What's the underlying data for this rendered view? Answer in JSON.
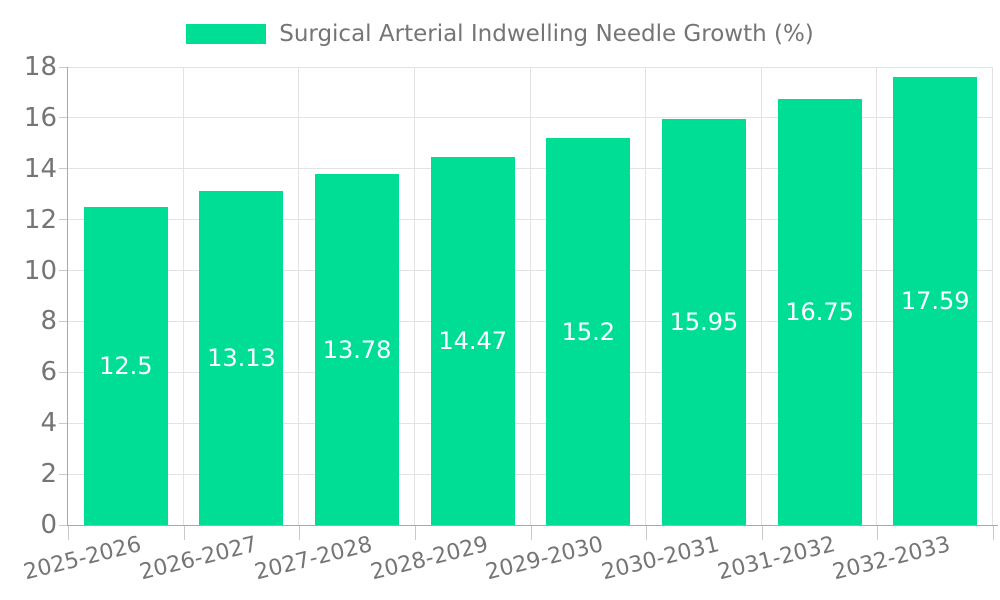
{
  "legend": {
    "label": "Surgical Arterial Indwelling Needle Growth (%)",
    "swatch_color": "#00DE96"
  },
  "chart_data": {
    "type": "bar",
    "title": "Surgical Arterial Indwelling Needle Growth (%)",
    "categories": [
      "2025-2026",
      "2026-2027",
      "2027-2028",
      "2028-2029",
      "2029-2030",
      "2030-2031",
      "2031-2032",
      "2032-2033"
    ],
    "values": [
      12.5,
      13.13,
      13.78,
      14.47,
      15.2,
      15.95,
      16.75,
      17.59
    ],
    "value_labels": [
      "12.5",
      "13.13",
      "13.78",
      "14.47",
      "15.2",
      "15.95",
      "16.75",
      "17.59"
    ],
    "xlabel": "",
    "ylabel": "",
    "ylim": [
      0,
      18
    ],
    "ytick_step": 2,
    "ytick_labels": [
      "0",
      "2",
      "4",
      "6",
      "8",
      "10",
      "12",
      "14",
      "16",
      "18"
    ],
    "grid": true,
    "legend_position": "top-center",
    "colors": {
      "bar": "#00DE96",
      "bar_value_text": "#ffffff",
      "grid_line": "#E3E3E3",
      "axis_line": "#A8A8A8",
      "tick_line": "#C9C9C9",
      "tick_text": "#757575",
      "background": "#ffffff"
    }
  }
}
